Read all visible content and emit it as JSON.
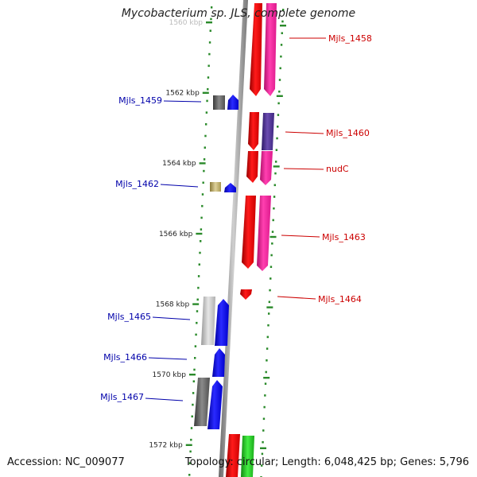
{
  "title": "Mycobacterium sp. JLS, complete genome",
  "accession": "Accession: NC_009077",
  "stats": "Topology: circular; Length: 6,048,425 bp; Genes: 5,796",
  "colors": {
    "forward": "#ff0000",
    "forward_alt": "#ff1aa0",
    "forward_alt2": "#55339a",
    "reverse": "#0000ff",
    "reverse_gray": "#707070",
    "reverse_light": "#c0c0c0",
    "reverse_olive": "#c8b870",
    "green": "#22cc22",
    "axis": "#999999",
    "tick": "#2a8a2a",
    "label_forward": "#cc0000",
    "label_reverse": "#0000aa"
  },
  "ruler": {
    "ticks": [
      {
        "kbp": 1560,
        "label": "1560 kbp"
      },
      {
        "kbp": 1562,
        "label": "1562 kbp"
      },
      {
        "kbp": 1564,
        "label": "1564 kbp"
      },
      {
        "kbp": 1566,
        "label": "1566 kbp"
      },
      {
        "kbp": 1568,
        "label": "1568 kbp"
      },
      {
        "kbp": 1570,
        "label": "1570 kbp"
      },
      {
        "kbp": 1572,
        "label": "1572 kbp"
      }
    ]
  },
  "genes_forward": [
    {
      "name": "Mjls_1458",
      "color": "forward"
    },
    {
      "name": "Mjls_1460",
      "color": "forward_alt2"
    },
    {
      "name": "nudC",
      "color": "forward_alt"
    },
    {
      "name": "Mjls_1463",
      "color": "forward_alt"
    },
    {
      "name": "Mjls_1464",
      "color": "forward"
    }
  ],
  "genes_reverse": [
    {
      "name": "Mjls_1459",
      "color": "reverse"
    },
    {
      "name": "Mjls_1462",
      "color": "reverse"
    },
    {
      "name": "Mjls_1465",
      "color": "reverse"
    },
    {
      "name": "Mjls_1466",
      "color": "reverse"
    },
    {
      "name": "Mjls_1467",
      "color": "reverse"
    }
  ]
}
